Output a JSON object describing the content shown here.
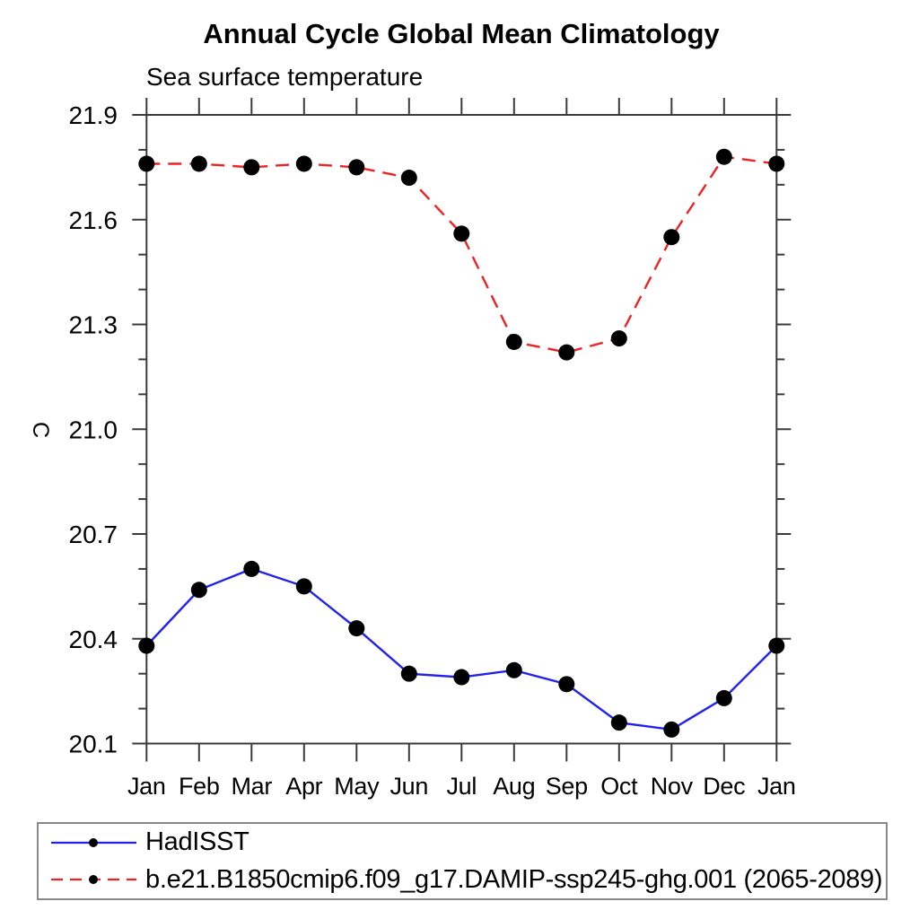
{
  "chart_data": {
    "type": "line",
    "title": "Annual Cycle Global Mean Climatology",
    "subtitle": "Sea surface temperature",
    "ylabel": "C",
    "categories": [
      "Jan",
      "Feb",
      "Mar",
      "Apr",
      "May",
      "Jun",
      "Jul",
      "Aug",
      "Sep",
      "Oct",
      "Nov",
      "Dec",
      "Jan"
    ],
    "ylim": [
      20.1,
      21.9
    ],
    "y_major_tick_step": 0.3,
    "y_minor_tick_step": 0.1,
    "y_tick_labels": [
      "20.1",
      "20.4",
      "20.7",
      "21.0",
      "21.3",
      "21.6",
      "21.9"
    ],
    "grid": false,
    "legend_position": "bottom",
    "axis_color": "#3a3a3a",
    "marker_color": "#000000",
    "series": [
      {
        "name": "HadISST",
        "color": "#2222ee",
        "line_style": "solid",
        "marker": "circle",
        "values": [
          20.38,
          20.54,
          20.6,
          20.55,
          20.43,
          20.3,
          20.29,
          20.31,
          20.27,
          20.16,
          20.14,
          20.23,
          20.38
        ]
      },
      {
        "name": "b.e21.B1850cmip6.f09_g17.DAMIP-ssp245-ghg.001 (2065-2089)",
        "color": "#ee2222",
        "line_style": "dashed",
        "marker": "circle",
        "values": [
          21.76,
          21.76,
          21.75,
          21.76,
          21.75,
          21.72,
          21.56,
          21.25,
          21.22,
          21.26,
          21.55,
          21.78,
          21.76
        ]
      }
    ]
  }
}
